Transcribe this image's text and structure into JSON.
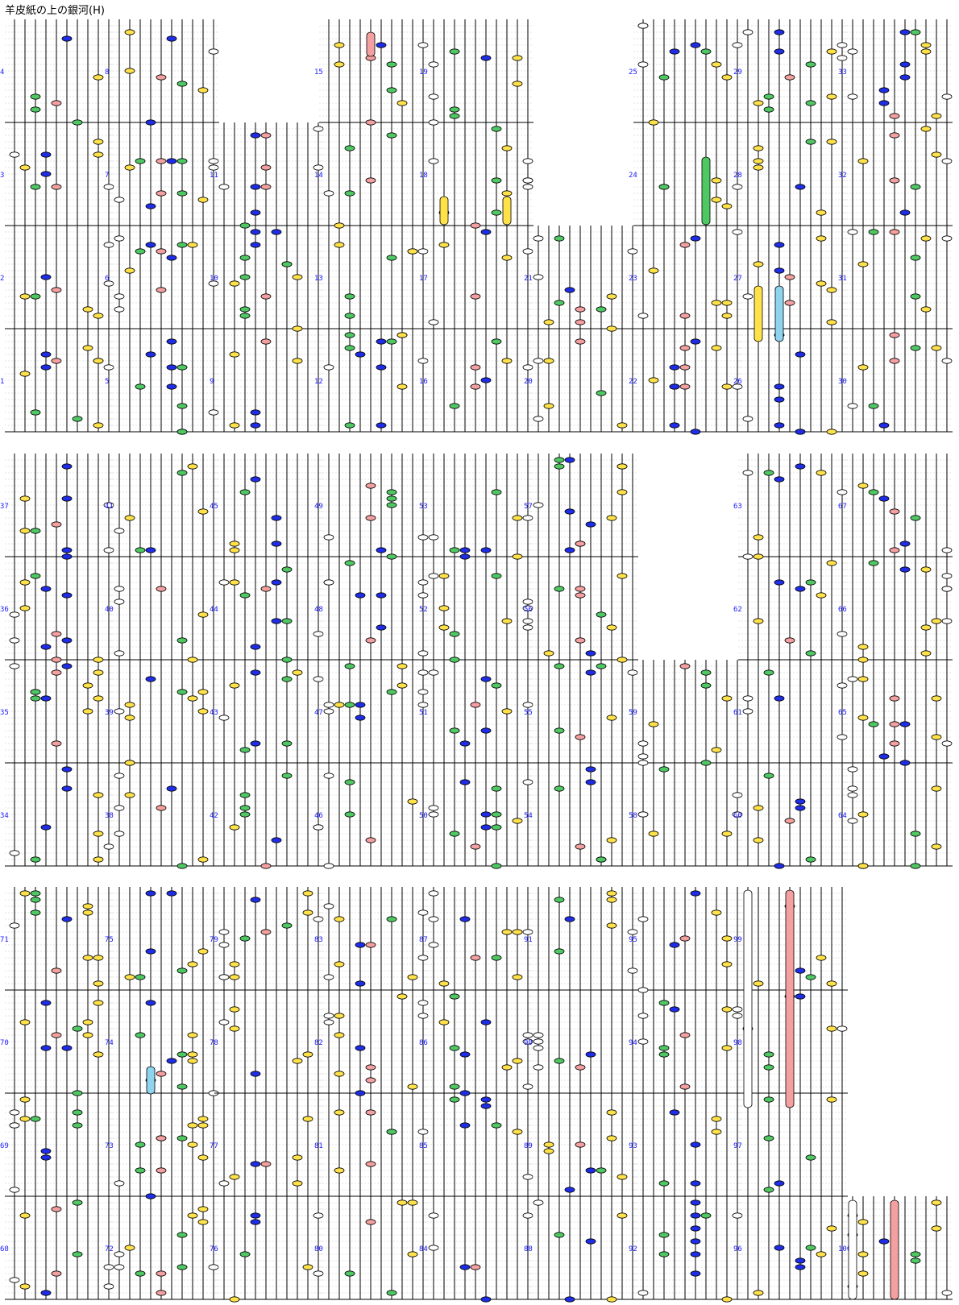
{
  "title": "羊皮紙の上の銀河(H)",
  "lanes": 10,
  "colors": {
    "white": "#ffffff",
    "yellow": "#ffe24a",
    "green": "#4fc864",
    "blue": "#1f2ee6",
    "pink": "#f5a0a0",
    "cyan": "#8fd4ee",
    "outline": "#000000",
    "grid": "#c8c8c8",
    "measure_number": "#1a1aff"
  },
  "note_legend": {
    "white": "lane 0 and lane 9",
    "yellow": "lanes 1, 7, 8",
    "green": "lanes 2, 6",
    "pink": "lane 4",
    "blue": "lanes 3, 5"
  },
  "columns": [
    {
      "measure_numbers": [
        1,
        2,
        3,
        4
      ]
    },
    {
      "measure_numbers": [
        5,
        6,
        7,
        8
      ]
    },
    {
      "measure_numbers": [
        9,
        10,
        11
      ]
    },
    {
      "measure_numbers": [
        12,
        13,
        14,
        15
      ]
    },
    {
      "measure_numbers": [
        16,
        17,
        18,
        19
      ]
    },
    {
      "measure_numbers": [
        20,
        21
      ]
    },
    {
      "measure_numbers": [
        22,
        23,
        24,
        25
      ]
    },
    {
      "measure_numbers": [
        26,
        27,
        28,
        29
      ]
    },
    {
      "measure_numbers": [
        30,
        31,
        32,
        33
      ]
    },
    {
      "measure_numbers": [
        34,
        35,
        36,
        37
      ]
    },
    {
      "measure_numbers": [
        38,
        39,
        40,
        41
      ]
    },
    {
      "measure_numbers": [
        42,
        43,
        44,
        45
      ]
    },
    {
      "measure_numbers": [
        46,
        47,
        48,
        49
      ]
    },
    {
      "measure_numbers": [
        50,
        51,
        52,
        53
      ]
    },
    {
      "measure_numbers": [
        54,
        55,
        56,
        57
      ]
    },
    {
      "measure_numbers": [
        58,
        59
      ]
    },
    {
      "measure_numbers": [
        60,
        61,
        62,
        63
      ]
    },
    {
      "measure_numbers": [
        64,
        65,
        66,
        67
      ]
    },
    {
      "measure_numbers": [
        68,
        69,
        70,
        71
      ]
    },
    {
      "measure_numbers": [
        72,
        73,
        74,
        75
      ]
    },
    {
      "measure_numbers": [
        76,
        77,
        78,
        79
      ]
    },
    {
      "measure_numbers": [
        80,
        81,
        82,
        83
      ]
    },
    {
      "measure_numbers": [
        84,
        85,
        86,
        87
      ]
    },
    {
      "measure_numbers": [
        88,
        89,
        90,
        91
      ]
    },
    {
      "measure_numbers": [
        92,
        93,
        94,
        95
      ]
    },
    {
      "measure_numbers": [
        96,
        97,
        98,
        99
      ]
    },
    {
      "measure_numbers": [
        100
      ]
    }
  ]
}
